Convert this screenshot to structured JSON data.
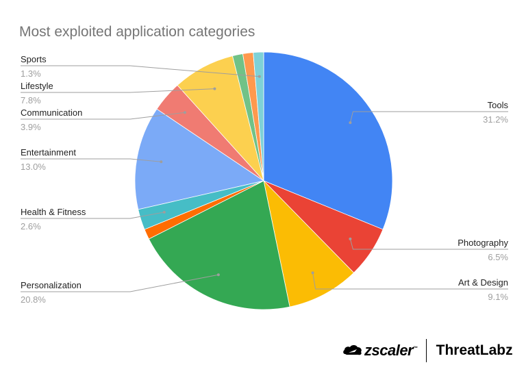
{
  "chart_data": {
    "type": "pie",
    "title": "Most exploited application categories",
    "slices": [
      {
        "label": "Tools",
        "value": 31.2,
        "value_label": "31.2%",
        "color": "#4285f4"
      },
      {
        "label": "Photography",
        "value": 6.5,
        "value_label": "6.5%",
        "color": "#ea4335"
      },
      {
        "label": "Art & Design",
        "value": 9.1,
        "value_label": "9.1%",
        "color": "#fbbc04"
      },
      {
        "label": "Personalization",
        "value": 20.8,
        "value_label": "20.8%",
        "color": "#34a853"
      },
      {
        "label": "",
        "value": 1.3,
        "value_label": "",
        "color": "#ff6d01"
      },
      {
        "label": "Health & Fitness",
        "value": 2.6,
        "value_label": "2.6%",
        "color": "#46bdc6"
      },
      {
        "label": "Entertainment",
        "value": 13.0,
        "value_label": "13.0%",
        "color": "#7baaf7"
      },
      {
        "label": "Communication",
        "value": 3.9,
        "value_label": "3.9%",
        "color": "#f07b72"
      },
      {
        "label": "Lifestyle",
        "value": 7.8,
        "value_label": "7.8%",
        "color": "#fcd04f"
      },
      {
        "label": "",
        "value": 1.3,
        "value_label": "",
        "color": "#71c287"
      },
      {
        "label": "",
        "value": 1.3,
        "value_label": "",
        "color": "#ff994d"
      },
      {
        "label": "Sports",
        "value": 1.3,
        "value_label": "1.3%",
        "color": "#7ed1d7"
      }
    ],
    "legend": "none",
    "start_angle": "12 o'clock, clockwise"
  },
  "brand": {
    "zscaler": "zscaler",
    "trademark": "™",
    "threatlabz": "ThreatLabz"
  }
}
